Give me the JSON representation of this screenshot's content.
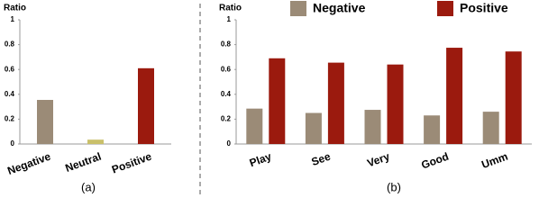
{
  "chart_data": [
    {
      "type": "bar",
      "y_label": "Ratio",
      "caption": "(a)",
      "categories": [
        "Negative",
        "Neutral",
        "Positive"
      ],
      "values": [
        0.355,
        0.035,
        0.61
      ],
      "colors": [
        "#9b8b77",
        "#c9c06a",
        "#9b1a0e"
      ],
      "ylim": [
        0,
        1
      ],
      "yticks": [
        0,
        0.2,
        0.4,
        0.6,
        0.8,
        1
      ]
    },
    {
      "type": "grouped_bar",
      "y_label": "Ratio",
      "caption": "(b)",
      "categories": [
        "Play",
        "See",
        "Very",
        "Good",
        "Umm"
      ],
      "series": [
        {
          "name": "Negative",
          "color": "#9b8b77",
          "values": [
            0.285,
            0.25,
            0.275,
            0.23,
            0.26
          ]
        },
        {
          "name": "Positive",
          "color": "#9b1a0e",
          "values": [
            0.69,
            0.655,
            0.64,
            0.775,
            0.745
          ]
        }
      ],
      "ylim": [
        0,
        1
      ],
      "yticks": [
        0,
        0.2,
        0.4,
        0.6,
        0.8,
        1
      ]
    }
  ]
}
